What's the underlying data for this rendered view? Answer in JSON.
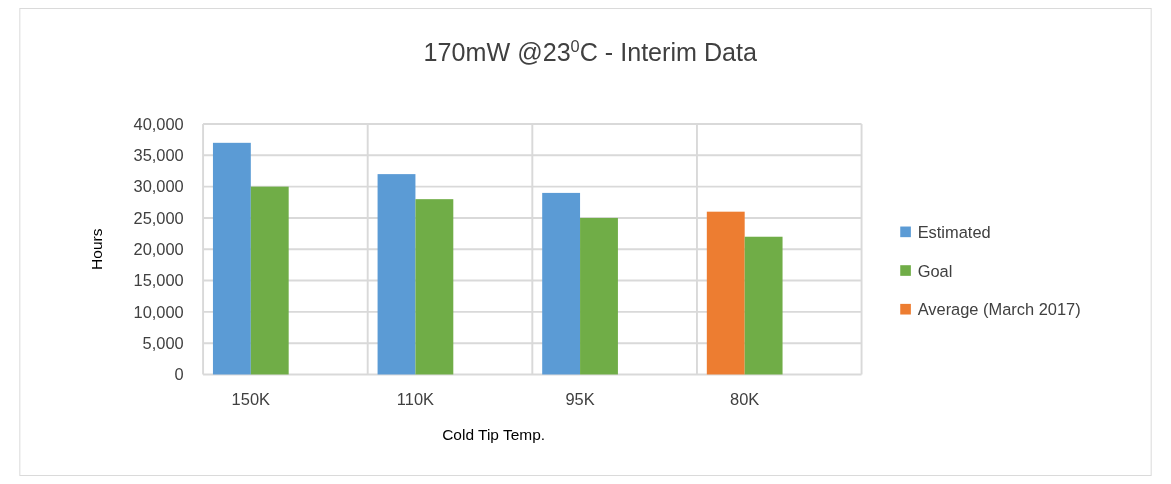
{
  "chart_data": {
    "type": "bar",
    "title": "170mW @23$^{0}$C - Interim Data",
    "xlabel": "Cold Tip Temp.",
    "ylabel": "Hours",
    "categories": [
      "150K",
      "110K",
      "95K",
      "80K"
    ],
    "series": [
      {
        "name": "Estimated",
        "color": "#5b9bd5",
        "values": [
          37000,
          32000,
          29000,
          null
        ]
      },
      {
        "name": "Goal",
        "color": "#70ad47",
        "values": [
          30000,
          28000,
          25000,
          22000
        ]
      },
      {
        "name": "Average (March 2017)",
        "color": "#ed7d31",
        "values": [
          null,
          null,
          null,
          26000
        ]
      }
    ],
    "ylim": [
      0,
      40000
    ],
    "yticks": [
      {
        "value": 0,
        "label": "0"
      },
      {
        "value": 5000,
        "label": "5,000"
      },
      {
        "value": 10000,
        "label": "10,000"
      },
      {
        "value": 15000,
        "label": "15,000"
      },
      {
        "value": 20000,
        "label": "20,000"
      },
      {
        "value": 25000,
        "label": "25,000"
      },
      {
        "value": 30000,
        "label": "30,000"
      },
      {
        "value": 35000,
        "label": "35,000"
      },
      {
        "value": 40000,
        "label": "40,000"
      }
    ],
    "grid": true,
    "legend": "right"
  }
}
